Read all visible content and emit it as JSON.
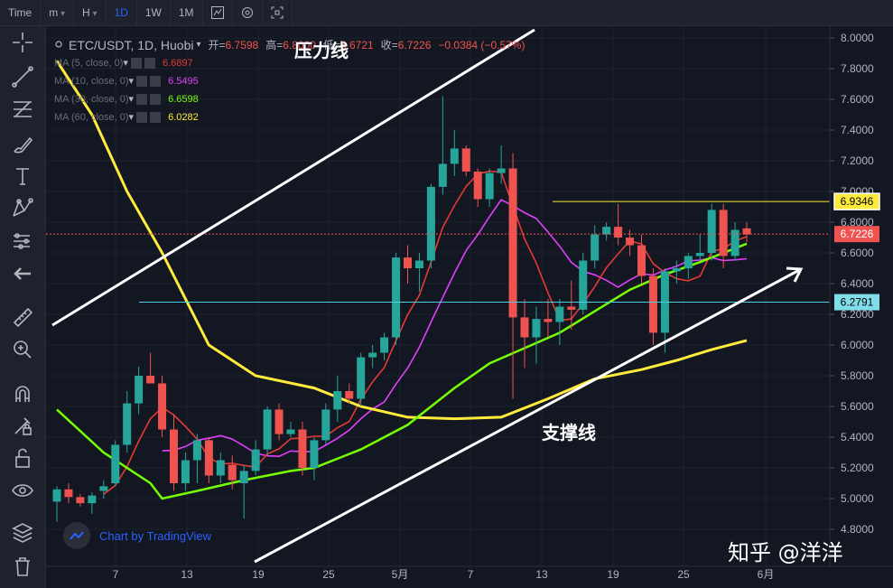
{
  "topbar": {
    "items": [
      {
        "label": "Time",
        "active": false,
        "dropdown": false
      },
      {
        "label": "m",
        "active": false,
        "dropdown": true
      },
      {
        "label": "H",
        "active": false,
        "dropdown": true
      },
      {
        "label": "1D",
        "active": true,
        "dropdown": false
      },
      {
        "label": "1W",
        "active": false,
        "dropdown": false
      },
      {
        "label": "1M",
        "active": false,
        "dropdown": false
      }
    ],
    "icons": [
      "candlestick-chart-type-icon",
      "settings-gear-icon",
      "screenshot-fullscreen-icon"
    ]
  },
  "toolbar": {
    "tools": [
      "crosshair-icon",
      "trend-line-icon",
      "fib-retracement-icon",
      "brush-icon",
      "text-icon",
      "pattern-icon",
      "prediction-icon",
      "back-arrow-icon",
      "ruler-icon",
      "zoom-in-icon",
      "magnet-icon",
      "lock-drawing-icon",
      "unlock-icon",
      "eye-icon",
      "layers-icon",
      "trash-icon"
    ]
  },
  "legend": {
    "symbol": "ETC/USDT, 1D, Huobi",
    "open_label": "开=",
    "open_value": "6.7598",
    "high_label": "高=",
    "high_value": "6.8000",
    "low_label": "低=",
    "low_value": "6.6721",
    "close_label": "收=",
    "close_value": "6.7226",
    "change": "−0.0384 (−0.57%)",
    "ma": [
      {
        "label": "MA (5, close, 0)",
        "value": "6.6897",
        "color": "#e53935"
      },
      {
        "label": "MA (10, close, 0)",
        "value": "6.5495",
        "color": "#e040fb"
      },
      {
        "label": "MA (30, close, 0)",
        "value": "6.6598",
        "color": "#76ff03"
      },
      {
        "label": "MA (60, close, 0)",
        "value": "6.0282",
        "color": "#ffeb3b"
      }
    ]
  },
  "annotations": {
    "resistance": "压力线",
    "support": "支撑线"
  },
  "watermark": "Chart by TradingView",
  "credit": "知乎 @洋洋",
  "chart_data": {
    "type": "candlestick",
    "symbol": "ETC/USDT",
    "timeframe": "1D",
    "exchange": "Huobi",
    "y_axis": {
      "min": 4.8,
      "max": 8.0,
      "step": 0.2,
      "ticks": [
        "8.0000",
        "7.8000",
        "7.6000",
        "7.4000",
        "7.2000",
        "7.0000",
        "6.8000",
        "6.6000",
        "6.4000",
        "6.2000",
        "6.0000",
        "5.8000",
        "5.6000",
        "5.4000",
        "5.2000",
        "5.0000",
        "4.8000"
      ]
    },
    "x_axis": {
      "ticks": [
        "7",
        "13",
        "19",
        "25",
        "5月",
        "7",
        "13",
        "19",
        "25",
        "6月"
      ]
    },
    "price_markers": [
      {
        "value": 6.9346,
        "label": "6.9346",
        "kind": "horizontal-line",
        "color": "#ffeb3b"
      },
      {
        "value": 6.7226,
        "label": "6.7226",
        "kind": "last-price",
        "color": "#ef5350"
      },
      {
        "value": 6.2791,
        "label": "6.2791",
        "kind": "horizontal-line",
        "color": "#4dd0e1"
      }
    ],
    "candles": [
      [
        4.98,
        5.08,
        4.85,
        5.06
      ],
      [
        5.06,
        5.1,
        4.97,
        5.01
      ],
      [
        5.01,
        5.03,
        4.95,
        4.97
      ],
      [
        4.97,
        5.04,
        4.9,
        5.02
      ],
      [
        5.05,
        5.12,
        5.0,
        5.08
      ],
      [
        5.1,
        5.38,
        5.08,
        5.35
      ],
      [
        5.35,
        5.7,
        5.3,
        5.62
      ],
      [
        5.62,
        5.86,
        5.55,
        5.8
      ],
      [
        5.8,
        5.95,
        5.75,
        5.75
      ],
      [
        5.75,
        5.8,
        5.4,
        5.45
      ],
      [
        5.45,
        5.55,
        5.05,
        5.1
      ],
      [
        5.1,
        5.3,
        5.05,
        5.25
      ],
      [
        5.25,
        5.42,
        5.1,
        5.38
      ],
      [
        5.38,
        5.4,
        5.1,
        5.15
      ],
      [
        5.15,
        5.3,
        5.1,
        5.25
      ],
      [
        5.22,
        5.28,
        5.06,
        5.12
      ],
      [
        5.1,
        5.22,
        4.87,
        5.18
      ],
      [
        5.18,
        5.38,
        5.15,
        5.32
      ],
      [
        5.32,
        5.6,
        5.28,
        5.58
      ],
      [
        5.58,
        5.62,
        5.38,
        5.42
      ],
      [
        5.42,
        5.5,
        5.4,
        5.45
      ],
      [
        5.45,
        5.5,
        5.15,
        5.2
      ],
      [
        5.2,
        5.4,
        5.12,
        5.38
      ],
      [
        5.38,
        5.62,
        5.35,
        5.58
      ],
      [
        5.58,
        5.8,
        5.5,
        5.7
      ],
      [
        5.7,
        5.75,
        5.62,
        5.65
      ],
      [
        5.65,
        5.95,
        5.6,
        5.92
      ],
      [
        5.92,
        6.0,
        5.85,
        5.95
      ],
      [
        5.95,
        6.08,
        5.9,
        6.05
      ],
      [
        6.05,
        6.6,
        6.0,
        6.57
      ],
      [
        6.57,
        6.65,
        6.4,
        6.5
      ],
      [
        6.5,
        6.6,
        6.35,
        6.55
      ],
      [
        6.55,
        7.05,
        6.5,
        7.03
      ],
      [
        7.03,
        7.62,
        6.98,
        7.18
      ],
      [
        7.18,
        7.4,
        7.1,
        7.28
      ],
      [
        7.28,
        7.3,
        7.1,
        7.13
      ],
      [
        7.13,
        7.15,
        6.9,
        6.95
      ],
      [
        6.95,
        7.15,
        6.9,
        7.12
      ],
      [
        7.12,
        7.3,
        7.05,
        7.15
      ],
      [
        7.15,
        7.25,
        5.65,
        6.18
      ],
      [
        6.18,
        6.3,
        5.85,
        6.05
      ],
      [
        6.05,
        6.25,
        5.88,
        6.17
      ],
      [
        6.17,
        6.3,
        6.05,
        6.15
      ],
      [
        6.15,
        6.3,
        6.0,
        6.25
      ],
      [
        6.25,
        6.42,
        6.1,
        6.23
      ],
      [
        6.23,
        6.6,
        6.2,
        6.55
      ],
      [
        6.55,
        6.78,
        6.5,
        6.72
      ],
      [
        6.72,
        6.8,
        6.68,
        6.77
      ],
      [
        6.77,
        6.92,
        6.65,
        6.7
      ],
      [
        6.7,
        6.75,
        6.58,
        6.65
      ],
      [
        6.65,
        6.72,
        6.4,
        6.45
      ],
      [
        6.45,
        6.5,
        6.0,
        6.08
      ],
      [
        6.08,
        6.5,
        5.95,
        6.48
      ],
      [
        6.48,
        6.55,
        6.4,
        6.5
      ],
      [
        6.5,
        6.6,
        6.43,
        6.58
      ],
      [
        6.58,
        6.72,
        6.55,
        6.6
      ],
      [
        6.6,
        6.92,
        6.55,
        6.88
      ],
      [
        6.88,
        6.92,
        6.5,
        6.58
      ],
      [
        6.58,
        6.8,
        6.55,
        6.75
      ],
      [
        6.76,
        6.8,
        6.67,
        6.72
      ]
    ]
  }
}
